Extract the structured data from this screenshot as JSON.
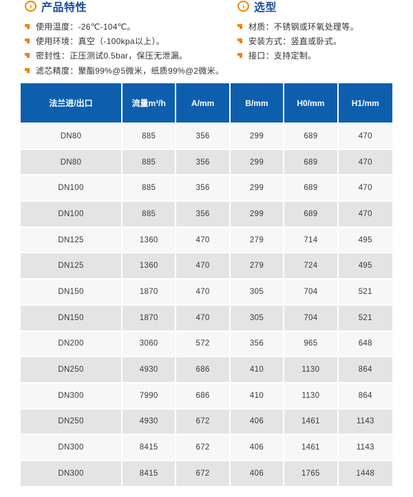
{
  "features": {
    "title": "产品特性",
    "items": [
      "使用温度：-26℃-104℃。",
      "使用环境：真空（-100kpa以上）。",
      "密封性：正压测试0.5bar，保压无泄漏。",
      "滤芯精度：聚酯99%@5微米，纸质99%@2微米。"
    ]
  },
  "selection": {
    "title": "选型",
    "items": [
      "材质：不锈钢或环氧处理等。",
      "安装方式：竖直或卧式。",
      "接口：支持定制。"
    ]
  },
  "table": {
    "headers": [
      "法兰进/出口",
      "流量m³/h",
      "A/mm",
      "B/mm",
      "H0/mm",
      "H1/mm"
    ],
    "rows": [
      [
        "DN80",
        "885",
        "356",
        "299",
        "689",
        "470"
      ],
      [
        "DN80",
        "885",
        "356",
        "299",
        "689",
        "470"
      ],
      [
        "DN100",
        "885",
        "356",
        "299",
        "689",
        "470"
      ],
      [
        "DN100",
        "885",
        "356",
        "299",
        "689",
        "470"
      ],
      [
        "DN125",
        "1360",
        "470",
        "279",
        "714",
        "495"
      ],
      [
        "DN125",
        "1360",
        "470",
        "279",
        "724",
        "495"
      ],
      [
        "DN150",
        "1870",
        "470",
        "305",
        "704",
        "521"
      ],
      [
        "DN150",
        "1870",
        "470",
        "305",
        "704",
        "521"
      ],
      [
        "DN200",
        "3060",
        "572",
        "356",
        "965",
        "648"
      ],
      [
        "DN250",
        "4930",
        "686",
        "410",
        "1130",
        "864"
      ],
      [
        "DN300",
        "7990",
        "686",
        "410",
        "1130",
        "864"
      ],
      [
        "DN250",
        "4930",
        "672",
        "406",
        "1461",
        "1143"
      ],
      [
        "DN300",
        "8415",
        "672",
        "406",
        "1461",
        "1143"
      ],
      [
        "DN300",
        "8415",
        "672",
        "406",
        "1765",
        "1448"
      ]
    ]
  },
  "icons": {
    "heading_icon": "chevron-circle-icon",
    "heading_glyph": "›",
    "bullet_icon": "square-bullet-icon"
  },
  "colors": {
    "table_header_blue": "#0d5fae",
    "heading_blue": "#1b4da2",
    "accent_orange": "#f08200",
    "row_light": "#f7f7f7",
    "row_gray": "#e4e4e4",
    "body_text": "#333333"
  }
}
